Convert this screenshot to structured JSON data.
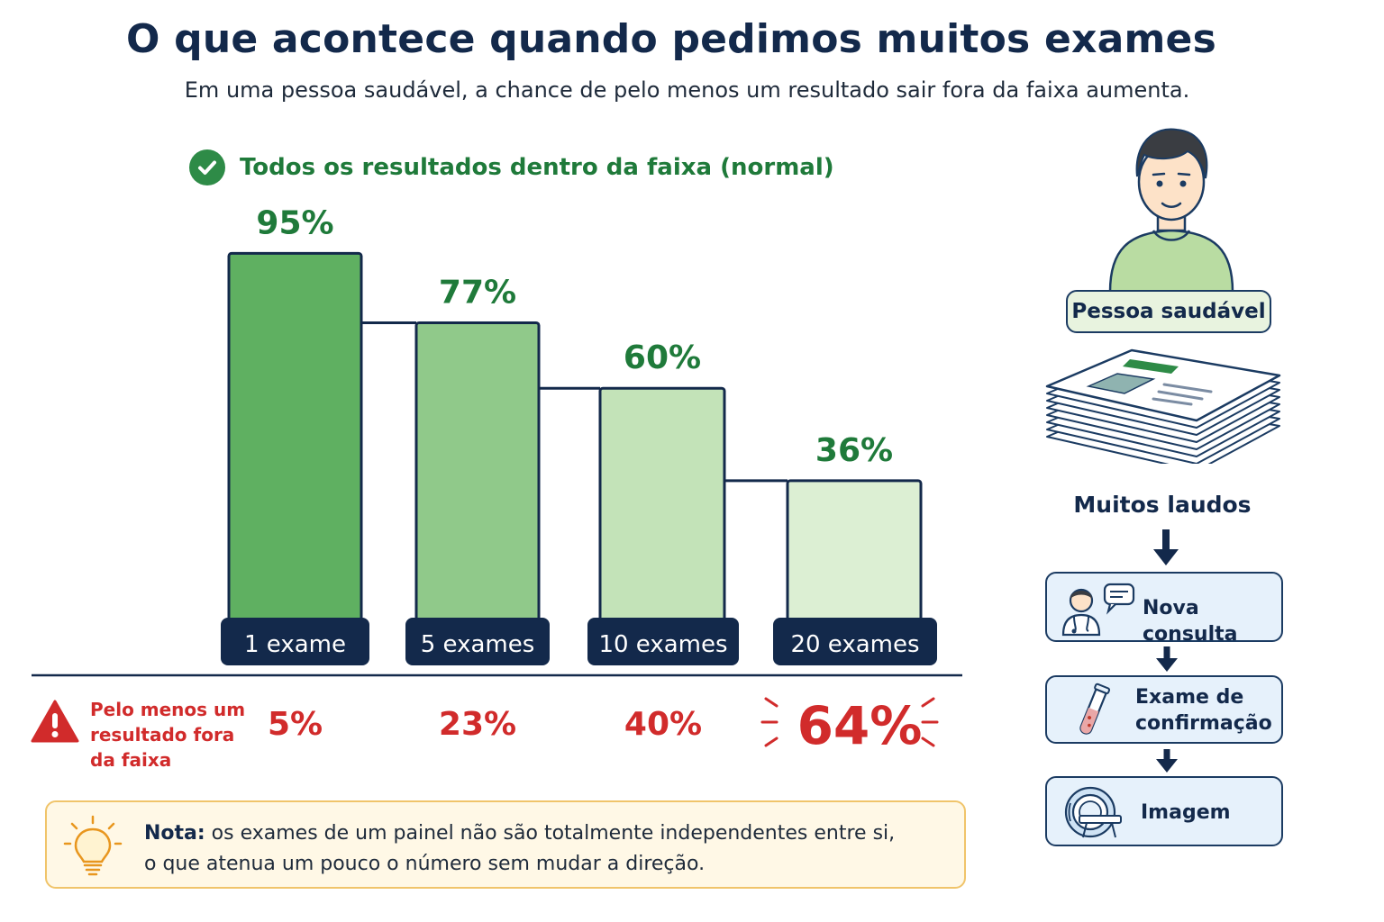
{
  "title": "O que acontece quando pedimos muitos exames",
  "subtitle": "Em uma pessoa saudável, a chance de pelo menos um resultado sair fora da faixa aumenta.",
  "legend": {
    "label": "Todos os resultados dentro da faixa (normal)",
    "icon": "check-circle-icon"
  },
  "risk": {
    "label_line1": "Pelo menos um",
    "label_line2": "resultado fora",
    "label_line3": "da faixa",
    "icon": "warning-triangle-icon"
  },
  "chart_data": {
    "type": "bar",
    "categories": [
      "1 exame",
      "5 exames",
      "10 exames",
      "20 exames"
    ],
    "series": [
      {
        "name": "Todos os resultados dentro da faixa (normal)",
        "values": [
          95,
          77,
          60,
          36
        ],
        "labels": [
          "95%",
          "77%",
          "60%",
          "36%"
        ]
      },
      {
        "name": "Pelo menos um resultado fora da faixa",
        "values": [
          5,
          23,
          40,
          64
        ],
        "labels": [
          "5%",
          "23%",
          "40%",
          "64%"
        ]
      }
    ],
    "ylim": [
      0,
      100
    ],
    "grid": false,
    "legend_position": "top-left",
    "bar_colors": [
      "#5fb061",
      "#90c98a",
      "#c3e3b8",
      "#dcefd3"
    ],
    "positive_color": "#1f7a3a",
    "risk_color": "#d12b2b",
    "highlight_category": "20 exames"
  },
  "sidebar": {
    "person_label": "Pessoa saudável",
    "person_icon": "person-icon",
    "papers_label": "Muitos laudos",
    "papers_icon": "stack-of-reports-icon",
    "steps": [
      {
        "line1": "Nova consulta",
        "line2": "",
        "icon": "doctor-chat-icon"
      },
      {
        "line1": "Exame de",
        "line2": "confirmação",
        "icon": "test-tube-icon"
      },
      {
        "line1": "Imagem",
        "line2": "",
        "icon": "mri-scanner-icon"
      }
    ]
  },
  "note": {
    "bold": "Nota:",
    "text_line1": " os exames de um painel não são totalmente independentes entre si,",
    "text_line2": "o que atenua um pouco o número sem mudar a direção.",
    "icon": "lightbulb-icon"
  }
}
